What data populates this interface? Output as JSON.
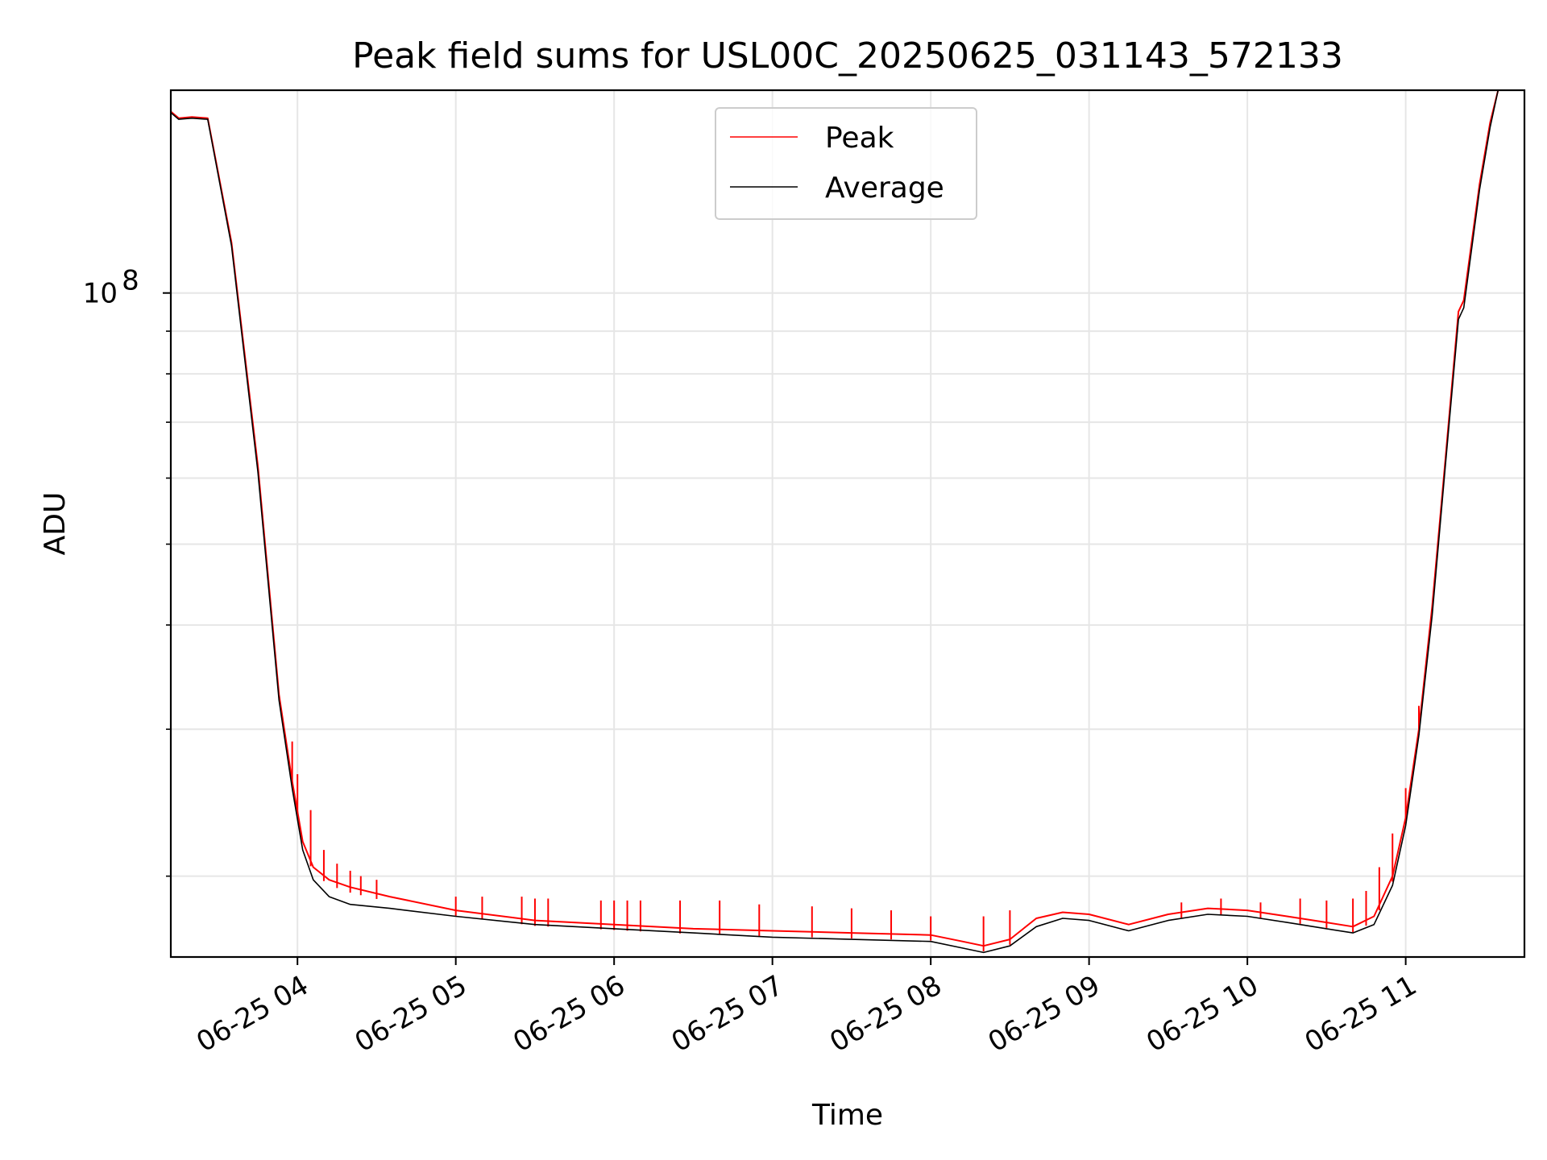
{
  "chart_data": {
    "type": "line",
    "title": "Peak field sums for USL00C_20250625_031143_572133",
    "xlabel": "Time",
    "ylabel": "ADU",
    "yscale": "log",
    "grid": true,
    "legend_position": "top-center",
    "xlim": [
      "06-25 03:12",
      "06-25 11:45"
    ],
    "ylim": [
      16000000,
      175000000
    ],
    "x_ticks": [
      "06-25 04",
      "06-25 05",
      "06-25 06",
      "06-25 07",
      "06-25 08",
      "06-25 09",
      "06-25 10",
      "06-25 11"
    ],
    "x_tick_times": [
      "06-25 04:00",
      "06-25 05:00",
      "06-25 06:00",
      "06-25 07:00",
      "06-25 08:00",
      "06-25 09:00",
      "06-25 10:00",
      "06-25 11:00"
    ],
    "y_major_ticks": [
      {
        "value": 100000000,
        "base": "10",
        "exp": "8"
      }
    ],
    "y_minor_ticks": [
      20000000,
      30000000,
      40000000,
      50000000,
      60000000,
      70000000,
      80000000,
      90000000
    ],
    "series": [
      {
        "name": "Peak",
        "color": "#ff0000",
        "points": [
          [
            "06-25 03:12",
            165000000
          ],
          [
            "06-25 03:15",
            162000000
          ],
          [
            "06-25 03:20",
            162500000
          ],
          [
            "06-25 03:26",
            162000000
          ],
          [
            "06-25 03:35",
            115000000
          ],
          [
            "06-25 03:45",
            62000000
          ],
          [
            "06-25 03:53",
            33000000
          ],
          [
            "06-25 03:58",
            26000000
          ],
          [
            "06-25 04:02",
            22000000
          ],
          [
            "06-25 04:06",
            20500000
          ],
          [
            "06-25 04:12",
            19800000
          ],
          [
            "06-25 04:20",
            19400000
          ],
          [
            "06-25 04:35",
            18900000
          ],
          [
            "06-25 05:00",
            18200000
          ],
          [
            "06-25 05:30",
            17700000
          ],
          [
            "06-25 06:00",
            17500000
          ],
          [
            "06-25 06:30",
            17300000
          ],
          [
            "06-25 07:00",
            17200000
          ],
          [
            "06-25 07:30",
            17100000
          ],
          [
            "06-25 08:00",
            17000000
          ],
          [
            "06-25 08:12",
            16700000
          ],
          [
            "06-25 08:20",
            16500000
          ],
          [
            "06-25 08:30",
            16800000
          ],
          [
            "06-25 08:40",
            17800000
          ],
          [
            "06-25 08:50",
            18100000
          ],
          [
            "06-25 09:00",
            18000000
          ],
          [
            "06-25 09:15",
            17500000
          ],
          [
            "06-25 09:30",
            18000000
          ],
          [
            "06-25 09:45",
            18300000
          ],
          [
            "06-25 10:00",
            18200000
          ],
          [
            "06-25 10:15",
            17900000
          ],
          [
            "06-25 10:30",
            17600000
          ],
          [
            "06-25 10:40",
            17400000
          ],
          [
            "06-25 10:48",
            17900000
          ],
          [
            "06-25 10:55",
            20000000
          ],
          [
            "06-25 11:00",
            23500000
          ],
          [
            "06-25 11:05",
            30000000
          ],
          [
            "06-25 11:10",
            42000000
          ],
          [
            "06-25 11:15",
            63000000
          ],
          [
            "06-25 11:20",
            95000000
          ],
          [
            "06-25 11:22",
            98000000
          ],
          [
            "06-25 11:28",
            135000000
          ],
          [
            "06-25 11:32",
            160000000
          ],
          [
            "06-25 11:35",
            175000000
          ]
        ],
        "spikes": [
          [
            "06-25 03:58",
            29000000
          ],
          [
            "06-25 04:00",
            26500000
          ],
          [
            "06-25 04:05",
            24000000
          ],
          [
            "06-25 04:10",
            21500000
          ],
          [
            "06-25 04:15",
            20700000
          ],
          [
            "06-25 04:20",
            20300000
          ],
          [
            "06-25 04:24",
            20000000
          ],
          [
            "06-25 04:30",
            19800000
          ],
          [
            "06-25 05:00",
            18900000
          ],
          [
            "06-25 05:10",
            18900000
          ],
          [
            "06-25 05:25",
            18900000
          ],
          [
            "06-25 05:30",
            18800000
          ],
          [
            "06-25 05:35",
            18800000
          ],
          [
            "06-25 05:55",
            18700000
          ],
          [
            "06-25 06:00",
            18700000
          ],
          [
            "06-25 06:05",
            18700000
          ],
          [
            "06-25 06:10",
            18700000
          ],
          [
            "06-25 06:25",
            18700000
          ],
          [
            "06-25 06:40",
            18700000
          ],
          [
            "06-25 06:55",
            18500000
          ],
          [
            "06-25 07:15",
            18400000
          ],
          [
            "06-25 07:30",
            18300000
          ],
          [
            "06-25 07:45",
            18200000
          ],
          [
            "06-25 08:00",
            17900000
          ],
          [
            "06-25 08:20",
            17900000
          ],
          [
            "06-25 08:30",
            18200000
          ],
          [
            "06-25 09:35",
            18600000
          ],
          [
            "06-25 09:50",
            18800000
          ],
          [
            "06-25 10:05",
            18600000
          ],
          [
            "06-25 10:20",
            18800000
          ],
          [
            "06-25 10:30",
            18700000
          ],
          [
            "06-25 10:40",
            18800000
          ],
          [
            "06-25 10:45",
            19200000
          ],
          [
            "06-25 10:50",
            20500000
          ],
          [
            "06-25 10:55",
            22500000
          ],
          [
            "06-25 11:00",
            25500000
          ],
          [
            "06-25 11:05",
            32000000
          ]
        ]
      },
      {
        "name": "Average",
        "color": "#000000",
        "points": [
          [
            "06-25 03:12",
            164500000
          ],
          [
            "06-25 03:15",
            161500000
          ],
          [
            "06-25 03:20",
            162000000
          ],
          [
            "06-25 03:26",
            161500000
          ],
          [
            "06-25 03:35",
            114000000
          ],
          [
            "06-25 03:45",
            61000000
          ],
          [
            "06-25 03:53",
            32500000
          ],
          [
            "06-25 03:58",
            25500000
          ],
          [
            "06-25 04:02",
            21500000
          ],
          [
            "06-25 04:06",
            19800000
          ],
          [
            "06-25 04:12",
            18900000
          ],
          [
            "06-25 04:20",
            18500000
          ],
          [
            "06-25 04:35",
            18300000
          ],
          [
            "06-25 05:00",
            17900000
          ],
          [
            "06-25 05:30",
            17500000
          ],
          [
            "06-25 06:00",
            17300000
          ],
          [
            "06-25 06:30",
            17100000
          ],
          [
            "06-25 07:00",
            16900000
          ],
          [
            "06-25 07:30",
            16800000
          ],
          [
            "06-25 08:00",
            16700000
          ],
          [
            "06-25 08:12",
            16400000
          ],
          [
            "06-25 08:20",
            16200000
          ],
          [
            "06-25 08:30",
            16500000
          ],
          [
            "06-25 08:40",
            17400000
          ],
          [
            "06-25 08:50",
            17800000
          ],
          [
            "06-25 09:00",
            17700000
          ],
          [
            "06-25 09:15",
            17200000
          ],
          [
            "06-25 09:30",
            17700000
          ],
          [
            "06-25 09:45",
            18000000
          ],
          [
            "06-25 10:00",
            17900000
          ],
          [
            "06-25 10:15",
            17600000
          ],
          [
            "06-25 10:30",
            17300000
          ],
          [
            "06-25 10:40",
            17100000
          ],
          [
            "06-25 10:48",
            17500000
          ],
          [
            "06-25 10:55",
            19500000
          ],
          [
            "06-25 11:00",
            23000000
          ],
          [
            "06-25 11:05",
            29500000
          ],
          [
            "06-25 11:10",
            41000000
          ],
          [
            "06-25 11:15",
            62000000
          ],
          [
            "06-25 11:20",
            93000000
          ],
          [
            "06-25 11:22",
            96000000
          ],
          [
            "06-25 11:28",
            133000000
          ],
          [
            "06-25 11:32",
            158000000
          ],
          [
            "06-25 11:35",
            175000000
          ]
        ]
      }
    ]
  }
}
